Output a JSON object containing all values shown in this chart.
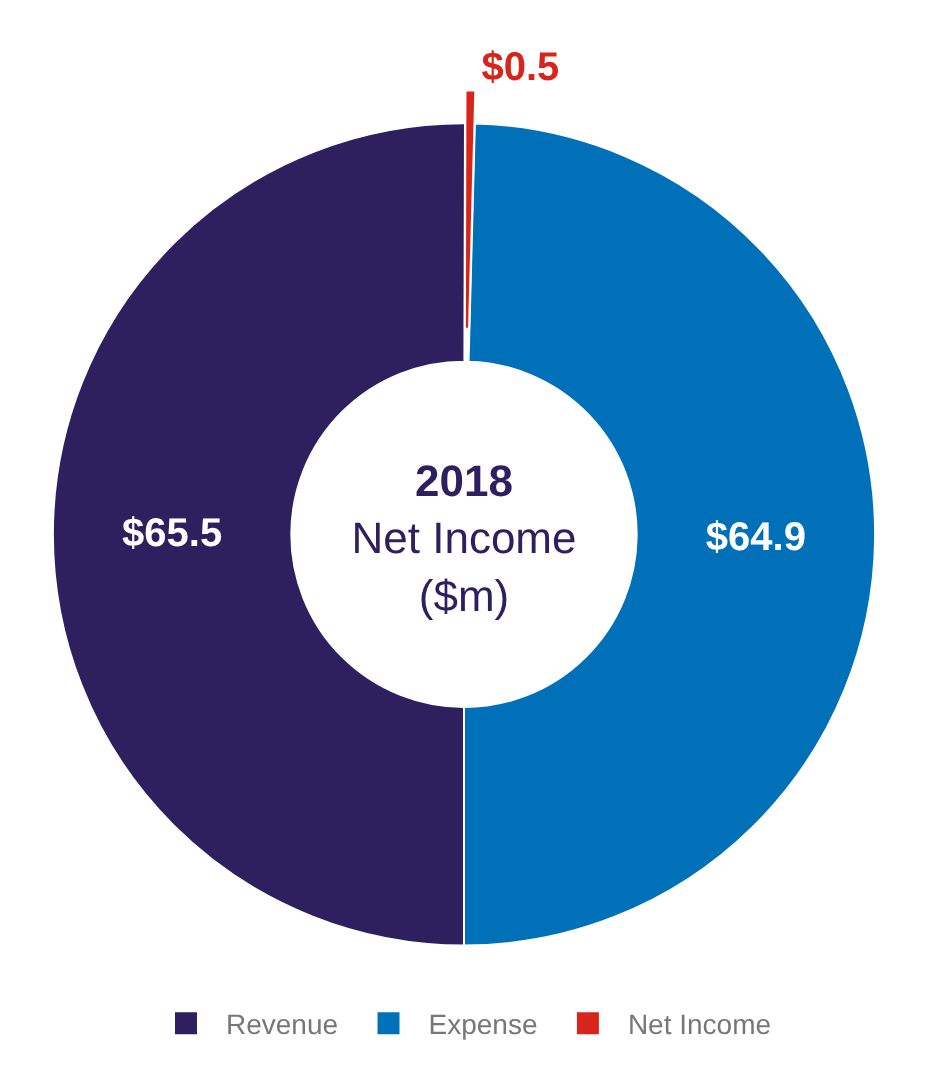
{
  "chart_data": {
    "type": "donut",
    "title": "2018",
    "subtitle": "Net Income ($m)",
    "categories": [
      "Revenue",
      "Expense",
      "Net Income"
    ],
    "values": [
      65.5,
      64.9,
      0.5
    ],
    "colors": [
      "#2e1f5f",
      "#0071b9",
      "#d8251c"
    ],
    "value_labels": [
      "$65.5",
      "$64.9",
      "$0.5"
    ],
    "legend": "bottom"
  }
}
